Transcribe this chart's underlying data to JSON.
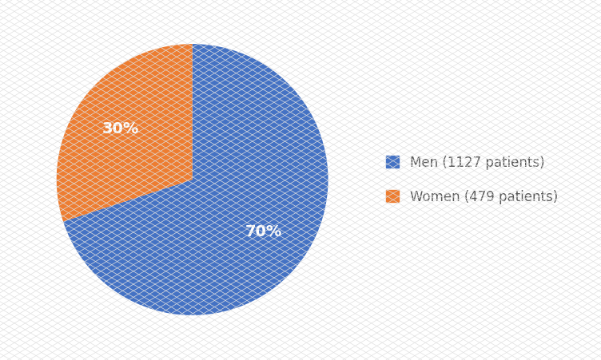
{
  "slices": [
    70,
    30
  ],
  "labels": [
    "Men (1127 patients)",
    "Women (479 patients)"
  ],
  "colors": [
    "#4472C4",
    "#ED7D31"
  ],
  "background_color": "#FFFFFF",
  "text_color": "#FFFFFF",
  "legend_fontsize": 12,
  "autopct_fontsize": 14,
  "startangle": 90,
  "pct_distance": 0.65,
  "hatch_color": "#E0E0E0",
  "legend_text_color": "#595959"
}
